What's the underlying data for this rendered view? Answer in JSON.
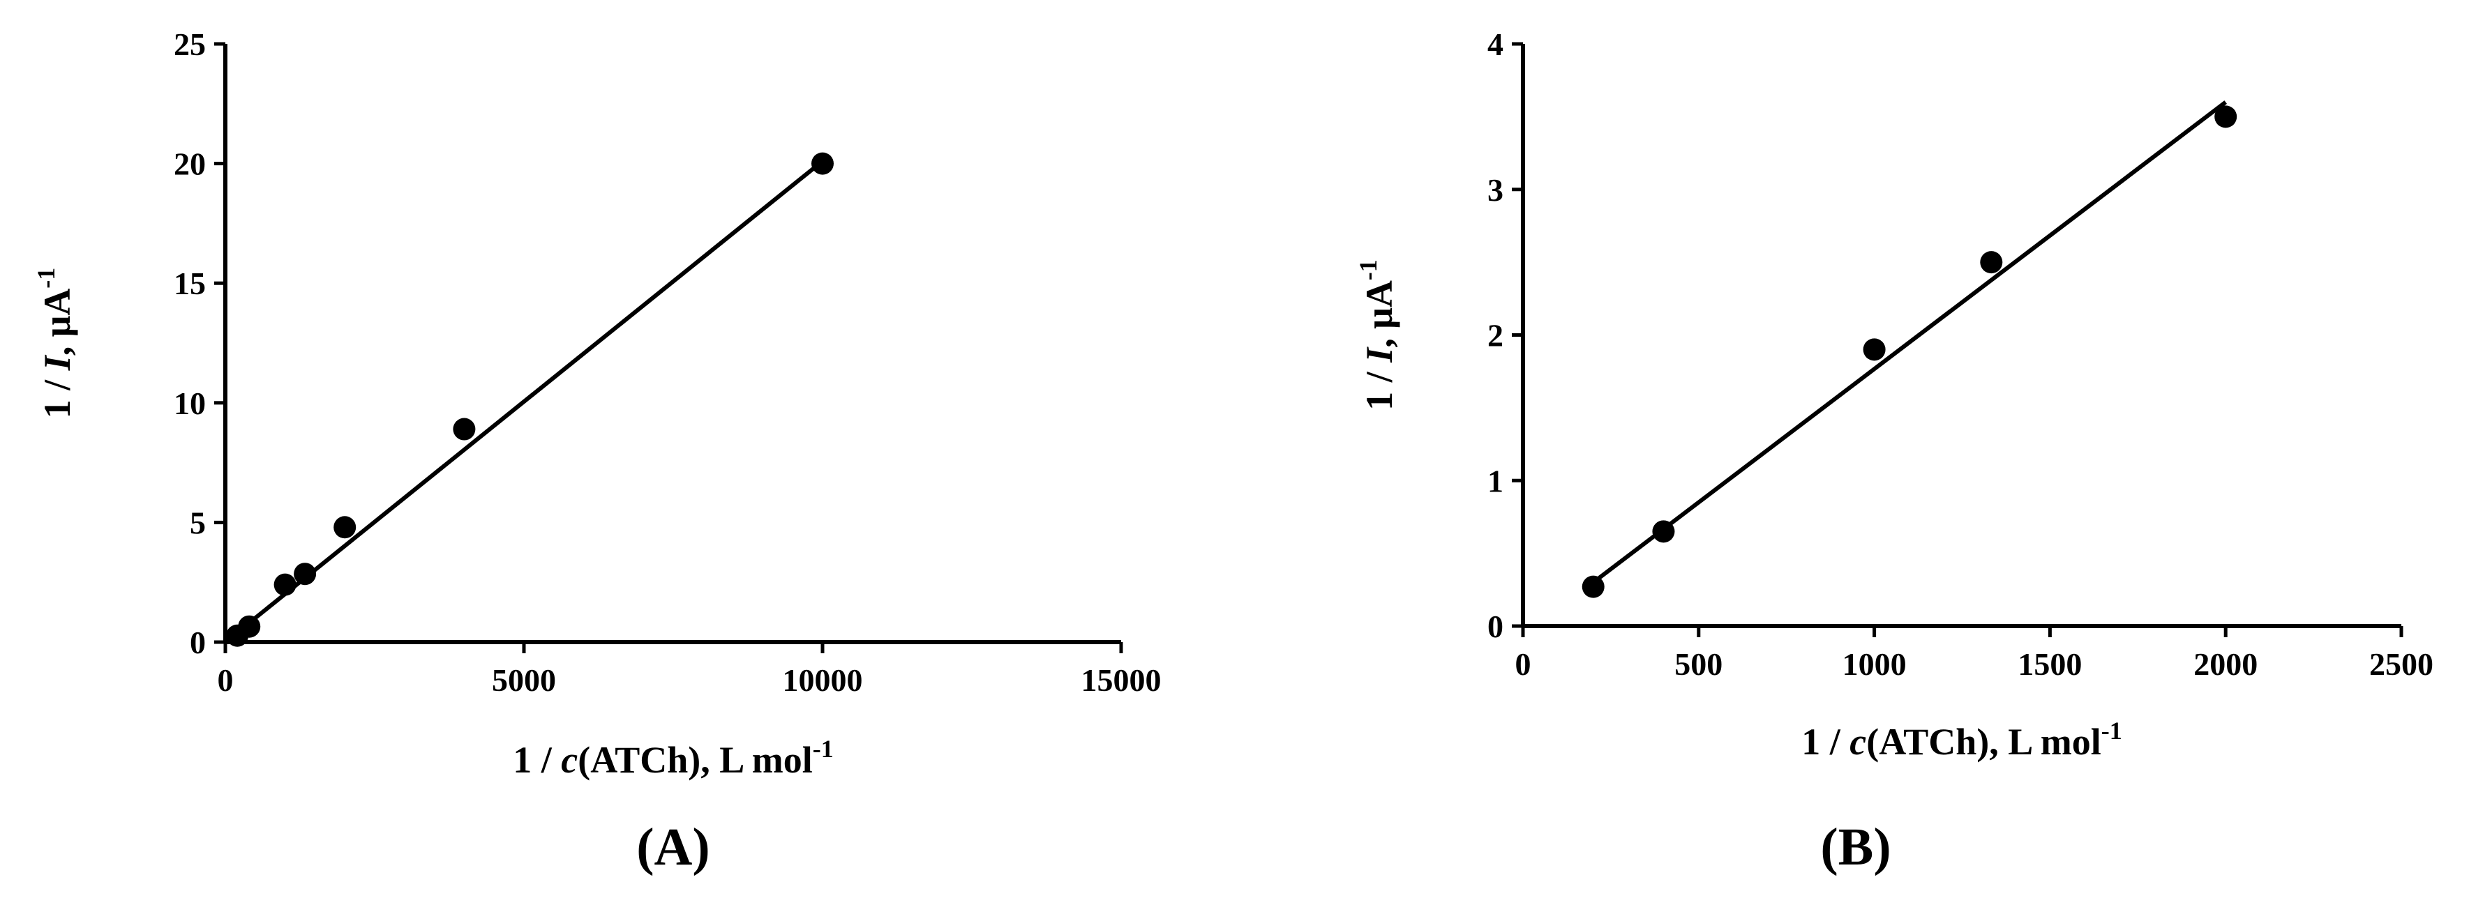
{
  "chart_data": [
    {
      "type": "scatter",
      "panel_label": "(A)",
      "x_label": {
        "pre": "1 / ",
        "italic": "c",
        "post": "(ATCh), L mol",
        "sup": "-1"
      },
      "y_label": {
        "pre": "1 / ",
        "italic": "I",
        "post": ", μA",
        "sup": "-1"
      },
      "xlim": [
        0,
        15000
      ],
      "xticks": [
        0,
        5000,
        10000,
        15000
      ],
      "ylim": [
        0,
        25
      ],
      "yticks": [
        0,
        5,
        10,
        15,
        20,
        25
      ],
      "color": "#000000",
      "points": {
        "x": [
          200,
          400,
          1000,
          1333,
          2000,
          4000,
          10000
        ],
        "y": [
          0.27,
          0.65,
          2.4,
          2.85,
          4.8,
          8.9,
          20
        ]
      },
      "fit": {
        "x": [
          0,
          10000
        ],
        "y": [
          0,
          20.1
        ]
      }
    },
    {
      "type": "scatter",
      "panel_label": "(B)",
      "x_label": {
        "pre": "1 / ",
        "italic": "c",
        "post": "(ATCh), L mol",
        "sup": "-1"
      },
      "y_label": {
        "pre": "1 / ",
        "italic": "I",
        "post": ", μA",
        "sup": "-1"
      },
      "xlim": [
        0,
        2500
      ],
      "xticks": [
        0,
        500,
        1000,
        1500,
        2000,
        2500
      ],
      "ylim": [
        0,
        4
      ],
      "yticks": [
        0,
        1,
        2,
        3,
        4
      ],
      "color": "#000000",
      "points": {
        "x": [
          200,
          400,
          1000,
          1333,
          2000
        ],
        "y": [
          0.27,
          0.65,
          1.9,
          2.5,
          3.5
        ]
      },
      "fit": {
        "x": [
          200,
          2000
        ],
        "y": [
          0.3,
          3.6
        ]
      }
    }
  ]
}
